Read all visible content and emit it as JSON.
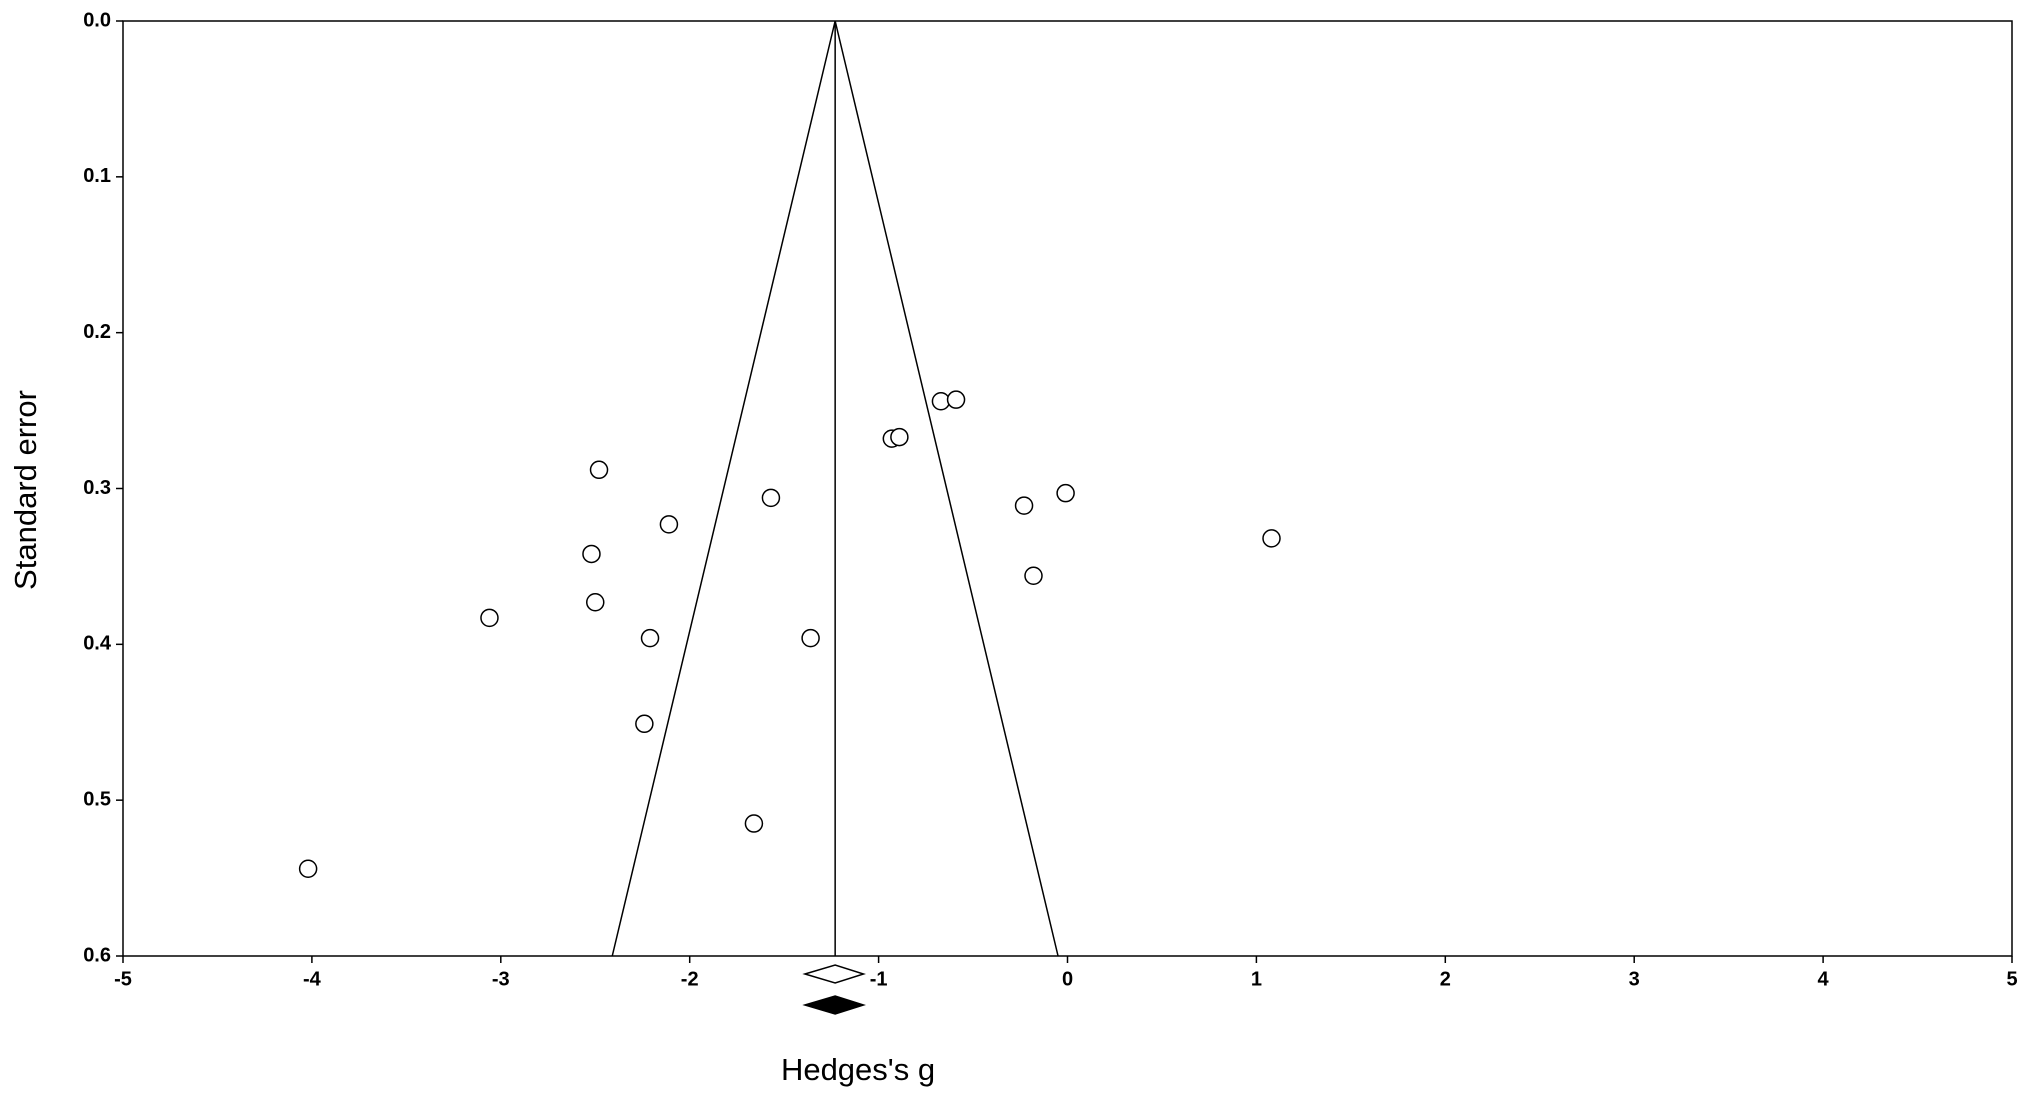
{
  "chart_data": {
    "type": "funnel",
    "x_label": "Hedges's g",
    "y_label": "Standard error",
    "xlim": [
      -5,
      5
    ],
    "xticks": [
      -5,
      -4,
      -3,
      -2,
      -1,
      0,
      1,
      2,
      3,
      4,
      5
    ],
    "ylim": [
      0,
      0.6
    ],
    "yticks": [
      {
        "value": 0,
        "label": "0.0"
      },
      0.1,
      0.2,
      0.3,
      0.4,
      0.5,
      0.6
    ],
    "y_inverted": true,
    "mean": -1.23,
    "funnel_lower": -2.41,
    "funnel_upper": -0.05,
    "x": [
      -2.48,
      -2.11,
      -2.52,
      -2.5,
      -3.06,
      -2.21,
      -2.24,
      -1.57,
      -1.36,
      -1.66,
      -4.02,
      -0.93,
      -0.89,
      -0.67,
      -0.59,
      -0.23,
      -0.01,
      -0.18,
      1.08
    ],
    "values": [
      0.288,
      0.323,
      0.342,
      0.373,
      0.383,
      0.396,
      0.451,
      0.306,
      0.396,
      0.515,
      0.544,
      0.268,
      0.267,
      0.244,
      0.243,
      0.311,
      0.303,
      0.356,
      0.332
    ],
    "diamonds": [
      {
        "estimate": -1.23,
        "lower": -1.39,
        "upper": -1.08,
        "filled": false
      },
      {
        "estimate": -1.23,
        "lower": -1.39,
        "upper": -1.08,
        "filled": true
      }
    ]
  }
}
